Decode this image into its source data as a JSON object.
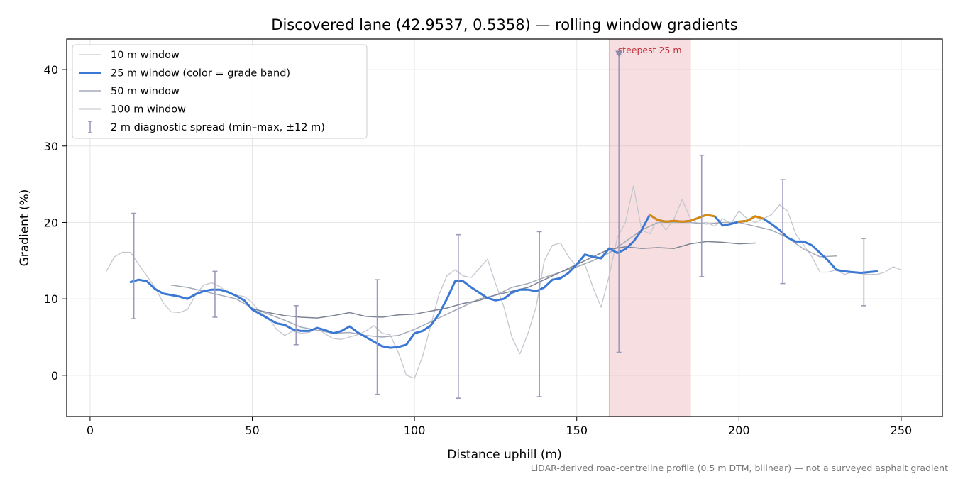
{
  "chart_data": {
    "type": "line",
    "title": "Discovered lane (42.9537, 0.5358) — rolling window gradients",
    "xlabel": "Distance uphill (m)",
    "ylabel": "Gradient (%)",
    "footnote": "LiDAR-derived road-centreline profile (0.5 m DTM, bilinear) — not a surveyed asphalt gradient",
    "xlim": [
      -7.2,
      262.7
    ],
    "ylim": [
      -5.4,
      44
    ],
    "xticks": [
      0,
      50,
      100,
      150,
      200,
      250
    ],
    "yticks": [
      0,
      10,
      20,
      30,
      40
    ],
    "grid": true,
    "legend": "upper left",
    "series": [
      {
        "name": "10 m window",
        "color": "#c3c7cf",
        "width": 1.3,
        "x": [
          5,
          7.5,
          10,
          12.5,
          15,
          17.5,
          20,
          22.5,
          25,
          27.5,
          30,
          32.5,
          35,
          37.5,
          40,
          42.5,
          45,
          47.5,
          50,
          52.5,
          55,
          57.5,
          60,
          62.5,
          65,
          67.5,
          70,
          72.5,
          75,
          77.5,
          80,
          82.5,
          85,
          87.5,
          90,
          92.5,
          95,
          97.5,
          100,
          102.5,
          105,
          107.5,
          110,
          112.5,
          115,
          117.5,
          120,
          122.5,
          125,
          127.5,
          130,
          132.5,
          135,
          137.5,
          140,
          142.5,
          145,
          147.5,
          150,
          152.5,
          155,
          157.5,
          160,
          162.5,
          165,
          167.5,
          170,
          172.5,
          175,
          177.5,
          180,
          182.5,
          185,
          187.5,
          190,
          192.5,
          195,
          197.5,
          200,
          202.5,
          205,
          207.5,
          210,
          212.5,
          215,
          217.5,
          220,
          222.5,
          225,
          227.5,
          230,
          232.5,
          235,
          237.5,
          240,
          242.5,
          245,
          247.5,
          250
        ],
        "values": [
          13.6,
          15.5,
          16.1,
          16.1,
          14.5,
          13.0,
          11.5,
          9.5,
          8.3,
          8.2,
          8.6,
          10.5,
          11.8,
          12.1,
          11.6,
          10.8,
          10.5,
          10.3,
          9.5,
          8.2,
          7.5,
          6.0,
          5.2,
          5.8,
          5.5,
          5.6,
          6.2,
          5.4,
          4.8,
          4.7,
          5.0,
          5.3,
          5.8,
          6.5,
          5.5,
          5.3,
          3.0,
          0.0,
          -0.4,
          2.5,
          6.5,
          10.5,
          13.0,
          13.8,
          13.0,
          12.8,
          14.0,
          15.2,
          12.0,
          9.0,
          5.0,
          2.8,
          5.5,
          9.0,
          15.0,
          17.0,
          17.3,
          15.5,
          14.2,
          14.5,
          11.5,
          8.9,
          13.0,
          18.0,
          20.0,
          24.8,
          19.0,
          18.5,
          20.5,
          19.0,
          20.5,
          23.0,
          20.5,
          19.8,
          20.0,
          19.5,
          20.5,
          19.8,
          21.5,
          20.5,
          20.0,
          20.5,
          21.0,
          22.3,
          21.5,
          18.5,
          17.0,
          15.5,
          13.5,
          13.5,
          13.8,
          13.2,
          13.5,
          13.3,
          13.2,
          13.2,
          13.5,
          14.2,
          13.8
        ]
      },
      {
        "name": "25 m window (color = grade band)",
        "color": "#3a78d4",
        "highlight_color": "#d98a0e",
        "highlight_above": 20,
        "width": 3,
        "x": [
          12.5,
          15,
          17.5,
          20,
          22.5,
          25,
          27.5,
          30,
          32.5,
          35,
          37.5,
          40,
          42.5,
          45,
          47.5,
          50,
          52.5,
          55,
          57.5,
          60,
          62.5,
          65,
          67.5,
          70,
          72.5,
          75,
          77.5,
          80,
          82.5,
          85,
          87.5,
          90,
          92.5,
          95,
          97.5,
          100,
          102.5,
          105,
          107.5,
          110,
          112.5,
          115,
          117.5,
          120,
          122.5,
          125,
          127.5,
          130,
          132.5,
          135,
          137.5,
          140,
          142.5,
          145,
          147.5,
          150,
          152.5,
          155,
          157.5,
          160,
          162.5,
          165,
          167.5,
          170,
          172.5,
          175,
          177.5,
          180,
          182.5,
          185,
          187.5,
          190,
          192.5,
          195,
          197.5,
          200,
          202.5,
          205,
          207.5,
          210,
          212.5,
          215,
          217.5,
          220,
          222.5,
          225,
          227.5,
          230,
          232.5,
          235,
          237.5,
          240,
          242.5
        ],
        "values": [
          12.2,
          12.5,
          12.3,
          11.3,
          10.7,
          10.5,
          10.3,
          10.0,
          10.6,
          11.0,
          11.2,
          11.2,
          10.9,
          10.4,
          9.8,
          8.6,
          8.0,
          7.4,
          6.8,
          6.6,
          6.0,
          5.8,
          5.8,
          6.2,
          5.9,
          5.5,
          5.8,
          6.4,
          5.6,
          5.0,
          4.4,
          3.8,
          3.6,
          3.7,
          4.0,
          5.5,
          5.8,
          6.5,
          8.0,
          10.0,
          12.3,
          12.3,
          11.5,
          10.8,
          10.1,
          9.8,
          10.0,
          10.8,
          11.2,
          11.2,
          11.0,
          11.5,
          12.5,
          12.7,
          13.4,
          14.5,
          15.8,
          15.5,
          15.3,
          16.6,
          16.0,
          16.5,
          17.5,
          19.0,
          21.0,
          20.3,
          20.1,
          20.2,
          20.1,
          20.2,
          20.6,
          21.0,
          20.8,
          19.6,
          19.8,
          20.1,
          20.2,
          20.8,
          20.5,
          19.8,
          19.0,
          18.0,
          17.5,
          17.5,
          17.0,
          16.0,
          15.0,
          13.8,
          13.6,
          13.5,
          13.4,
          13.5,
          13.6
        ]
      },
      {
        "name": "50 m window",
        "color": "#a3aab8",
        "width": 1.5,
        "x": [
          25,
          30,
          35,
          40,
          45,
          50,
          55,
          60,
          65,
          70,
          75,
          80,
          85,
          90,
          95,
          100,
          105,
          110,
          115,
          120,
          125,
          130,
          135,
          140,
          145,
          150,
          155,
          160,
          165,
          170,
          175,
          180,
          185,
          190,
          195,
          200,
          205,
          210,
          215,
          220,
          225,
          230
        ],
        "values": [
          11.8,
          11.5,
          11.0,
          10.5,
          10.0,
          8.8,
          8.0,
          7.2,
          6.3,
          5.9,
          5.5,
          5.6,
          5.2,
          5.0,
          5.2,
          6.0,
          7.0,
          8.0,
          9.0,
          10.0,
          10.5,
          11.5,
          12.0,
          12.8,
          13.5,
          14.2,
          15.0,
          16.0,
          17.5,
          19.0,
          20.0,
          20.0,
          20.0,
          19.8,
          20.0,
          20.0,
          19.5,
          19.0,
          18.0,
          16.5,
          15.5,
          15.6
        ]
      },
      {
        "name": "100 m window",
        "color": "#7c8394",
        "width": 1.5,
        "x": [
          50,
          55,
          60,
          65,
          70,
          75,
          80,
          85,
          90,
          95,
          100,
          105,
          110,
          115,
          120,
          125,
          130,
          135,
          140,
          145,
          150,
          155,
          160,
          165,
          170,
          175,
          180,
          185,
          190,
          195,
          200,
          205
        ],
        "values": [
          8.7,
          8.2,
          7.8,
          7.6,
          7.5,
          7.8,
          8.2,
          7.7,
          7.6,
          7.9,
          8.0,
          8.4,
          8.8,
          9.4,
          9.8,
          10.5,
          11.0,
          11.5,
          12.5,
          13.5,
          14.5,
          15.5,
          16.5,
          16.8,
          16.6,
          16.7,
          16.6,
          17.2,
          17.5,
          17.4,
          17.2,
          17.3
        ]
      }
    ],
    "errorbars": {
      "name": "2 m diagnostic spread (min–max, ±12 m)",
      "color": "#9c99ba",
      "x": [
        13.5,
        38.5,
        63.5,
        88.5,
        113.5,
        138.5,
        163,
        188.5,
        213.5,
        238.5
      ],
      "low": [
        7.4,
        7.6,
        4.0,
        -2.5,
        -3.0,
        -2.8,
        3.0,
        12.9,
        12.0,
        9.1
      ],
      "high": [
        21.2,
        13.6,
        9.1,
        12.5,
        18.4,
        18.8,
        42,
        28.8,
        25.6,
        17.9
      ]
    },
    "highlight": {
      "label": "steepest 25 m",
      "span": [
        160,
        185
      ],
      "color": "#e8a3aa",
      "label_color": "#c0303a",
      "marker_x": 163,
      "marker_y": 42
    }
  }
}
